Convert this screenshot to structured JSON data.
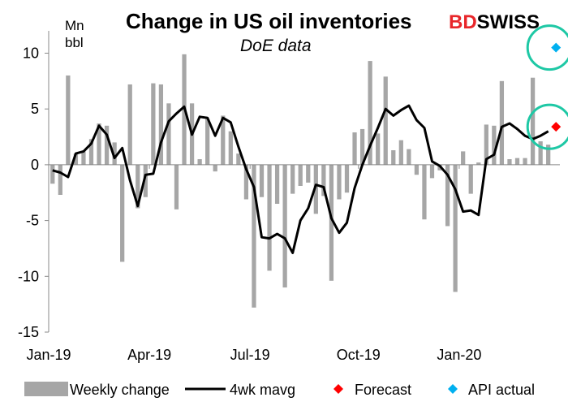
{
  "chart_data": {
    "type": "bar",
    "title": "Change in US oil inventories",
    "subtitle": "DoE data",
    "brand": {
      "bd": "BD",
      "rest": "SWISS"
    },
    "y_unit": [
      "Mn",
      "bbl"
    ],
    "ylim": [
      -15,
      12
    ],
    "yticks": [
      10,
      5,
      0,
      -5,
      -10,
      -15
    ],
    "x_tick_labels": [
      {
        "label": "Jan-19",
        "index": 0
      },
      {
        "label": "Apr-19",
        "index": 13
      },
      {
        "label": "Jul-19",
        "index": 26
      },
      {
        "label": "Oct-19",
        "index": 40
      },
      {
        "label": "Jan-20",
        "index": 53
      }
    ],
    "grid": false,
    "legend_position": "bottom",
    "series": [
      {
        "name": "Weekly change",
        "kind": "bar",
        "color": "#a6a6a6",
        "values": [
          -1.7,
          -2.7,
          8.0,
          1.0,
          1.2,
          2.3,
          3.7,
          3.5,
          2.0,
          -8.7,
          7.2,
          -3.9,
          -2.9,
          7.3,
          7.2,
          5.5,
          -4.0,
          9.9,
          5.5,
          0.5,
          4.1,
          -0.6,
          4.4,
          3.0,
          1.0,
          -3.1,
          -12.8,
          -2.9,
          -9.5,
          -3.5,
          -11.0,
          -2.6,
          -1.9,
          -1.6,
          -4.4,
          -2.8,
          -10.4,
          -3.1,
          -2.5,
          2.9,
          3.2,
          9.3,
          2.8,
          7.9,
          1.3,
          2.2,
          1.4,
          -0.9,
          -4.9,
          -1.2,
          -0.5,
          -5.5,
          -11.4,
          1.2,
          -2.6,
          0.2,
          3.6,
          3.5,
          7.5,
          0.5,
          0.6,
          0.6,
          7.8,
          2.1,
          1.8
        ],
        "approximate": true
      },
      {
        "name": "4wk mavg",
        "kind": "line",
        "color": "#000000",
        "values": [
          -0.5,
          -0.7,
          -1.1,
          1.0,
          1.2,
          1.9,
          3.5,
          2.7,
          0.6,
          1.5,
          -1.4,
          -3.7,
          -0.9,
          -0.8,
          2.0,
          3.9,
          4.6,
          5.2,
          2.7,
          4.3,
          4.2,
          2.6,
          4.2,
          3.8,
          1.6,
          -0.4,
          -2.0,
          -6.5,
          -6.6,
          -6.2,
          -6.6,
          -7.9,
          -5.0,
          -3.9,
          -1.8,
          -2.0,
          -4.8,
          -6.1,
          -5.2,
          -2.1,
          0.0,
          1.7,
          3.3,
          5.0,
          4.4,
          4.9,
          5.3,
          4.0,
          3.3,
          0.3,
          -0.1,
          -0.9,
          -2.2,
          -4.2,
          -4.1,
          -4.5,
          0.5,
          0.9,
          3.4,
          3.7,
          3.2,
          2.6,
          2.3,
          2.6,
          3.0
        ],
        "approximate": true
      },
      {
        "name": "Forecast",
        "kind": "point",
        "color": "#ff0000",
        "index": 65,
        "value": 3.4
      },
      {
        "name": "API actual",
        "kind": "point",
        "color": "#00b0f0",
        "index": 65,
        "value": 10.5
      }
    ],
    "highlight_color": "#1ec8a5"
  }
}
